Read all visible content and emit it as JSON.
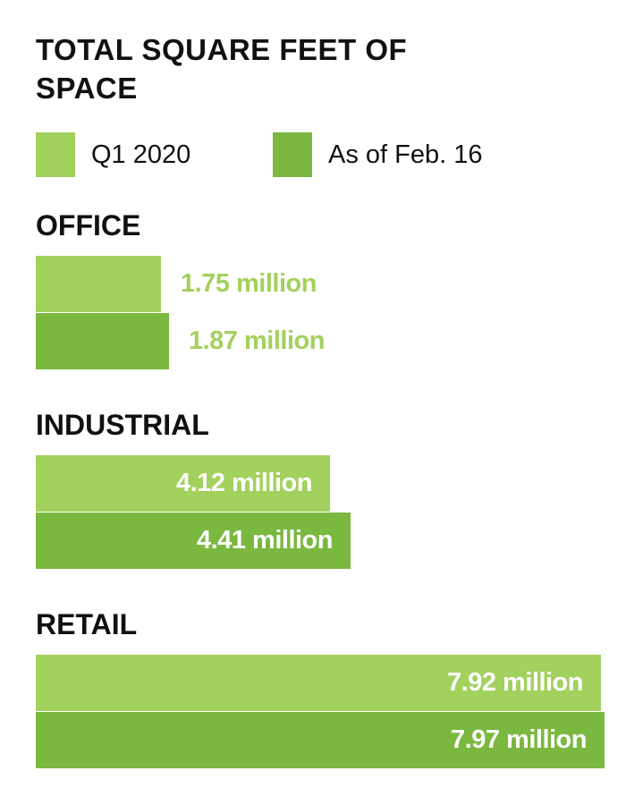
{
  "title": "TOTAL SQUARE FEET OF SPACE",
  "colors": {
    "q1_2020": "#a3d15e",
    "feb_16": "#7ab83f",
    "text": "#111111",
    "inside_label": "#ffffff"
  },
  "legend": [
    {
      "label": "Q1 2020",
      "color": "#a3d15e"
    },
    {
      "label": "As of Feb. 16",
      "color": "#7ab83f"
    }
  ],
  "chart_data": {
    "type": "bar",
    "orientation": "horizontal",
    "title": "TOTAL SQUARE FEET OF SPACE",
    "categories": [
      "OFFICE",
      "INDUSTRIAL",
      "RETAIL"
    ],
    "unit": "million",
    "series": [
      {
        "name": "Q1 2020",
        "values": [
          1.75,
          4.12,
          7.92
        ],
        "labels": [
          "1.75 million",
          "4.12 million",
          "7.92 million"
        ]
      },
      {
        "name": "As of Feb. 16",
        "values": [
          1.87,
          4.41,
          7.97
        ],
        "labels": [
          "1.87 million",
          "4.41 million",
          "7.97 million"
        ]
      }
    ],
    "xlim": [
      0,
      8.05
    ],
    "grid": false,
    "legend_position": "top"
  }
}
